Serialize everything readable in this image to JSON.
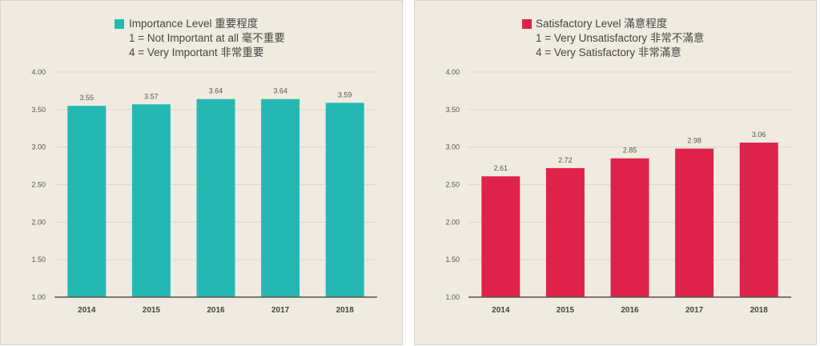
{
  "chart_data": [
    {
      "type": "bar",
      "legend": {
        "title": "Importance Level 重要程度",
        "lines": [
          "1 = Not Important at all 毫不重要",
          "4 = Very Important 非常重要"
        ]
      },
      "categories": [
        "2014",
        "2015",
        "2016",
        "2017",
        "2018"
      ],
      "values": [
        3.55,
        3.57,
        3.64,
        3.64,
        3.59
      ],
      "value_labels": [
        "3.55",
        "3.57",
        "3.64",
        "3.64",
        "3.59"
      ],
      "ylim": [
        1.0,
        4.0
      ],
      "yticks": [
        "1.00",
        "1.50",
        "2.00",
        "2.50",
        "3.00",
        "3.50",
        "4.00"
      ],
      "grid": true,
      "legend_placement": "top-center",
      "color": "#25b8b2"
    },
    {
      "type": "bar",
      "legend": {
        "title": "Satisfactory Level 滿意程度",
        "lines": [
          "1 = Very Unsatisfactory 非常不滿意",
          "4 = Very Satisfactory 非常滿意"
        ]
      },
      "categories": [
        "2014",
        "2015",
        "2016",
        "2017",
        "2018"
      ],
      "values": [
        2.61,
        2.72,
        2.85,
        2.98,
        3.06
      ],
      "value_labels": [
        "2.61",
        "2.72",
        "2.85",
        "2.98",
        "3.06"
      ],
      "ylim": [
        1.0,
        4.0
      ],
      "yticks": [
        "1.00",
        "1.50",
        "2.00",
        "2.50",
        "3.00",
        "3.50",
        "4.00"
      ],
      "grid": true,
      "legend_placement": "top-center",
      "color": "#df224a"
    }
  ]
}
